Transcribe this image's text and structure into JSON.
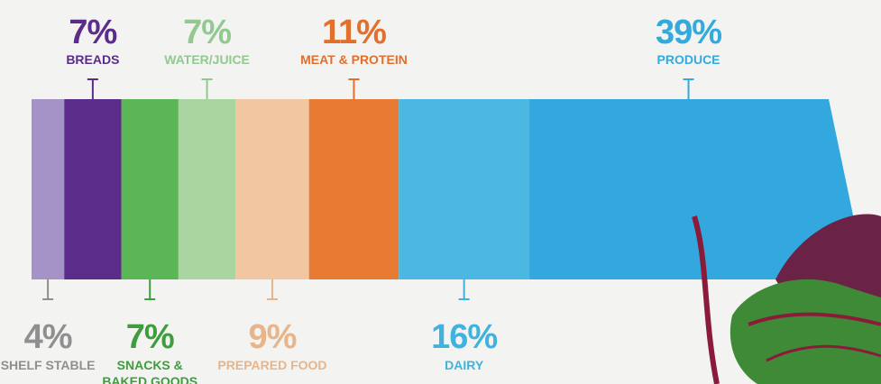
{
  "chart_data": {
    "type": "bar",
    "orientation": "horizontal-stacked",
    "unit": "%",
    "categories": [
      "SHELF STABLE",
      "BREADS",
      "SNACKS & BAKED GOODS",
      "WATER/JUICE",
      "PREPARED FOOD",
      "MEAT & PROTEIN",
      "DAIRY",
      "PRODUCE"
    ],
    "values": [
      4,
      7,
      7,
      7,
      9,
      11,
      16,
      39
    ],
    "value_labels": [
      "4%",
      "7%",
      "7%",
      "7%",
      "9%",
      "11%",
      "16%",
      "39%"
    ],
    "label_positions": [
      "bottom",
      "top",
      "bottom",
      "top",
      "bottom",
      "top",
      "bottom",
      "top"
    ],
    "colors": [
      "#a592c6",
      "#5b2c8a",
      "#5bb655",
      "#a9d6a0",
      "#f1c6a1",
      "#e87a34",
      "#4bb8e4",
      "#32a8de"
    ],
    "label_colors": [
      "#8f8f8f",
      "#5b2c8a",
      "#3e9d3c",
      "#92c990",
      "#e8b48a",
      "#e0702c",
      "#3fb3de",
      "#33aade"
    ],
    "title": "",
    "xlabel": "",
    "ylabel": ""
  }
}
